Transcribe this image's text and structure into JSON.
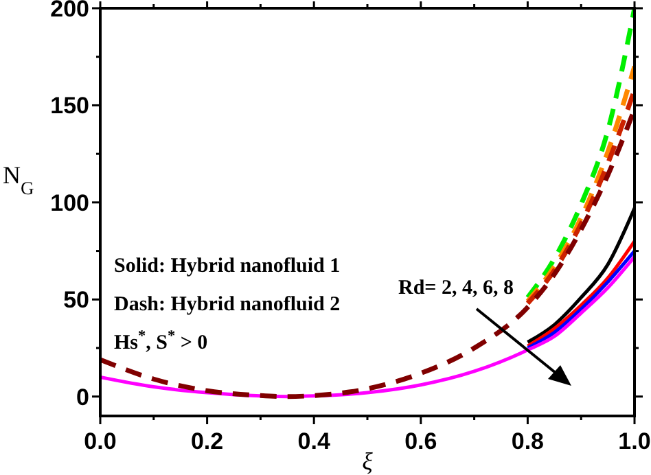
{
  "chart_data": {
    "type": "line",
    "xlabel": "ξ",
    "ylabel": "N$_{G}$",
    "x": [
      0,
      0.1,
      0.2,
      0.3,
      0.35,
      0.4,
      0.5,
      0.6,
      0.7,
      0.8,
      0.85,
      0.9,
      0.95,
      1.0
    ],
    "xlim": [
      0,
      1
    ],
    "xticks": [
      {
        "value": 0,
        "label": "0.0"
      },
      {
        "value": 0.1,
        "label": null
      },
      {
        "value": 0.2,
        "label": "0.2"
      },
      {
        "value": 0.3,
        "label": null
      },
      {
        "value": 0.4,
        "label": "0.4"
      },
      {
        "value": 0.5,
        "label": null
      },
      {
        "value": 0.6,
        "label": "0.6"
      },
      {
        "value": 0.7,
        "label": null
      },
      {
        "value": 0.8,
        "label": "0.8"
      },
      {
        "value": 0.9,
        "label": null
      },
      {
        "value": 1,
        "label": "1.0"
      }
    ],
    "ylim": [
      -10,
      200
    ],
    "yticks": [
      0,
      {
        "value": 25,
        "label": null
      },
      50,
      {
        "value": 75,
        "label": null
      },
      100,
      {
        "value": 125,
        "label": null
      },
      150,
      {
        "value": 175,
        "label": null
      },
      200
    ],
    "grid": false,
    "series": [
      {
        "color": "#000000",
        "line_style": "solid",
        "values": [
          null,
          null,
          null,
          null,
          null,
          null,
          null,
          null,
          null,
          28,
          37,
          51,
          68,
          97
        ]
      },
      {
        "color": "#ff0000",
        "line_style": "solid",
        "values": [
          null,
          null,
          null,
          null,
          null,
          null,
          null,
          null,
          null,
          26,
          35,
          47,
          61,
          80
        ]
      },
      {
        "color": "#0000ff",
        "line_style": "solid",
        "values": [
          null,
          null,
          null,
          null,
          null,
          null,
          null,
          null,
          null,
          25,
          33,
          45,
          59,
          75
        ]
      },
      {
        "color": "#ff00ff",
        "line_style": "solid",
        "values": [
          10,
          5,
          2,
          0.3,
          0,
          0.3,
          2,
          6,
          13,
          24,
          31,
          43,
          56,
          72
        ]
      },
      {
        "color": "#00ee00",
        "line_style": "dashed",
        "values": [
          null,
          null,
          null,
          null,
          null,
          null,
          null,
          null,
          null,
          51,
          71,
          99,
          137,
          200
        ]
      },
      {
        "color": "#ff8800",
        "line_style": "dashed",
        "values": [
          null,
          null,
          null,
          null,
          null,
          null,
          null,
          null,
          null,
          49,
          67,
          92,
          126,
          170
        ]
      },
      {
        "color": "#cc2200",
        "line_style": "dashed",
        "values": [
          null,
          null,
          null,
          null,
          null,
          null,
          null,
          null,
          null,
          48,
          65,
          89,
          120,
          158
        ]
      },
      {
        "color": "#800000",
        "line_style": "dashed",
        "values": [
          19,
          9,
          3,
          0.5,
          0,
          0.5,
          4,
          12,
          25,
          46,
          63,
          86,
          114,
          148
        ]
      }
    ],
    "annotations": [
      "Solid: Hybrid nanofluid 1",
      "Dash: Hybrid nanofluid 2",
      "Hs$^{*}$, S$^{*}$ > 0",
      "Rd= 2, 4, 6, 8"
    ]
  }
}
